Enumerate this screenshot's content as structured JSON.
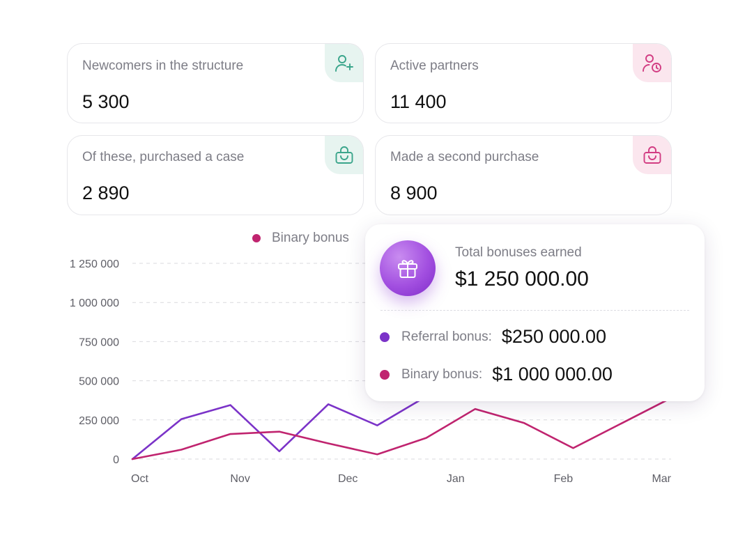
{
  "stats": [
    {
      "label": "Newcomers in the structure",
      "value": "5 300",
      "icon": "user-plus-icon",
      "accent": "#3aa58b"
    },
    {
      "label": "Active partners",
      "value": "11 400",
      "icon": "user-clock-icon",
      "accent": "#d23c82"
    },
    {
      "label": "Of these, purchased a case",
      "value": "2 890",
      "icon": "shopping-bag-icon",
      "accent": "#3aa58b"
    },
    {
      "label": "Made a second purchase",
      "value": "8 900",
      "icon": "shopping-bag-icon",
      "accent": "#d23c82"
    }
  ],
  "legend": {
    "label": "Binary bonus",
    "color": "#c0246f"
  },
  "chart_data": {
    "type": "line",
    "x": [
      "Oct",
      "",
      "Nov",
      "",
      "",
      "Dec",
      "",
      "Jan",
      "",
      "Feb",
      "",
      "Mar"
    ],
    "x_tick_labels": [
      "Oct",
      "Nov",
      "Dec",
      "Jan",
      "Feb",
      "Mar"
    ],
    "y_tick_labels": [
      "1 250 000",
      "1 000 000",
      "750 000",
      "500 000",
      "250 000",
      "0"
    ],
    "ylim": [
      0,
      1250000
    ],
    "grid": true,
    "series": [
      {
        "name": "Referral bonus",
        "color": "#7b33c8",
        "values": [
          0,
          255000,
          345000,
          50000,
          350000,
          215000,
          400000,
          null,
          null,
          null,
          null,
          null
        ]
      },
      {
        "name": "Binary bonus",
        "color": "#c0246f",
        "values": [
          0,
          60000,
          160000,
          175000,
          100000,
          30000,
          135000,
          320000,
          230000,
          70000,
          230000,
          390000
        ]
      }
    ]
  },
  "tooltip": {
    "title": "Total bonuses earned",
    "total": "$1 250 000.00",
    "icon": "gift-icon",
    "rows": [
      {
        "label": "Referral bonus:",
        "value": "$250 000.00",
        "color": "#7b33c8"
      },
      {
        "label": "Binary bonus:",
        "value": "$1 000 000.00",
        "color": "#c0246f"
      }
    ]
  }
}
